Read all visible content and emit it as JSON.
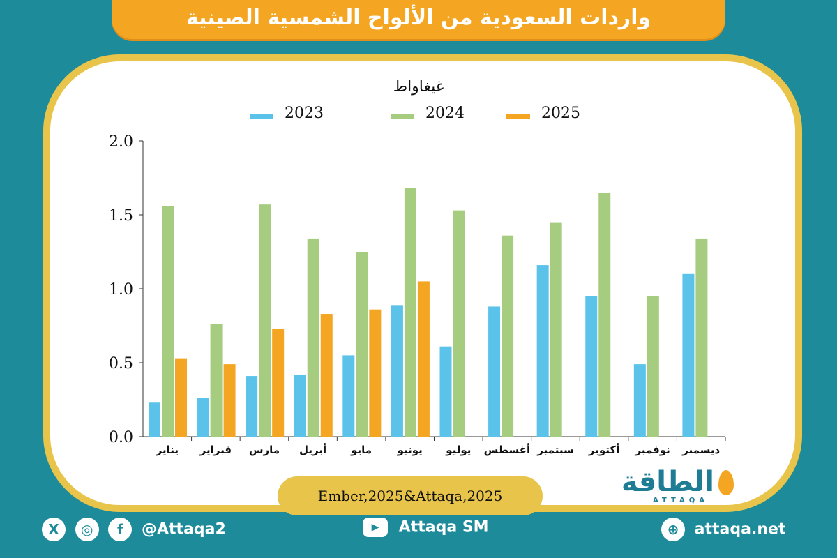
{
  "title": "واردات السعودية من الألواح الشمسية الصينية",
  "unit_label": "غيغاواط",
  "source": "Ember,2025&Attaqa,2025",
  "logo": {
    "text": "الطاقة",
    "sub": "ATTAQA"
  },
  "footer": {
    "social_handle": "@Attaqa2",
    "youtube": "Attaqa SM",
    "website": "attaqa.net",
    "x_icon": "X",
    "instagram_icon": "◎",
    "facebook_icon": "f",
    "youtube_icon": "▶",
    "globe_icon": "⊕"
  },
  "colors": {
    "background": "#1e8b9b",
    "accent": "#f4a623",
    "series_2023": "#5bc3ea",
    "series_2024": "#a6cd7f",
    "series_2025": "#f4a623"
  },
  "chart_data": {
    "type": "bar",
    "title": "واردات السعودية من الألواح الشمسية الصينية",
    "ylabel": "غيغاواط",
    "ylim": [
      0,
      2
    ],
    "yticks": [
      "0.0",
      "0.5",
      "1.0",
      "1.5",
      "2.0"
    ],
    "legend_position": "top",
    "categories": [
      "يناير",
      "فبراير",
      "مارس",
      "أبريل",
      "مايو",
      "يونيو",
      "يوليو",
      "أغسطس",
      "سبتمبر",
      "أكتوبر",
      "نوفمبر",
      "ديسمبر"
    ],
    "series": [
      {
        "name": "2023",
        "color": "#5bc3ea",
        "values": [
          0.23,
          0.26,
          0.41,
          0.42,
          0.55,
          0.89,
          0.61,
          0.88,
          1.16,
          0.95,
          0.49,
          1.1
        ]
      },
      {
        "name": "2024",
        "color": "#a6cd7f",
        "values": [
          1.56,
          0.76,
          1.57,
          1.34,
          1.25,
          1.68,
          1.53,
          1.36,
          1.45,
          1.65,
          0.95,
          1.34
        ]
      },
      {
        "name": "2025",
        "color": "#f4a623",
        "values": [
          0.53,
          0.49,
          0.73,
          0.83,
          0.86,
          1.05,
          null,
          null,
          null,
          null,
          null,
          null
        ]
      }
    ]
  }
}
